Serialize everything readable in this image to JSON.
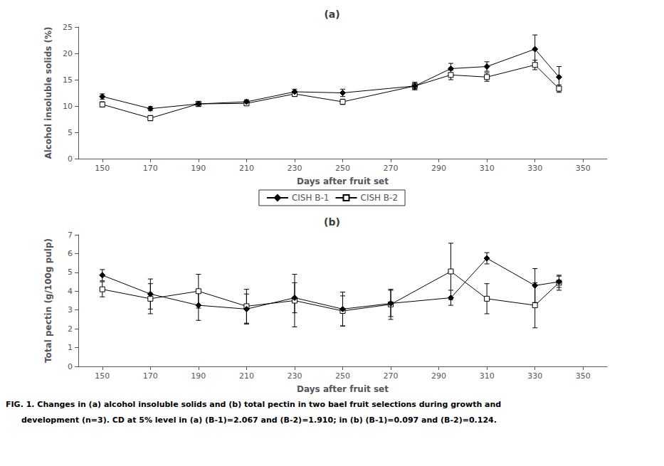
{
  "chart_data": [
    {
      "type": "line",
      "title": "(a)",
      "xlabel": "Days after fruit set",
      "ylabel": "Alcohol insoluble solids (%)",
      "xlim": [
        140,
        360
      ],
      "xticks": [
        150,
        170,
        190,
        210,
        230,
        250,
        270,
        290,
        310,
        330,
        350
      ],
      "ylim": [
        0,
        25
      ],
      "yticks": [
        0,
        5,
        10,
        15,
        20,
        25
      ],
      "grid": false,
      "legend": "bottom",
      "series": [
        {
          "name": "CISH B-1",
          "color": "#000000",
          "marker": "diamond",
          "line_style": "solid",
          "x": [
            150,
            170,
            190,
            210,
            230,
            250,
            280,
            295,
            310,
            330,
            340
          ],
          "values": [
            11.8,
            9.5,
            10.4,
            10.8,
            12.7,
            12.5,
            13.8,
            17.1,
            17.5,
            20.8,
            15.5
          ],
          "errors": [
            0.5,
            0.4,
            0.4,
            0.4,
            0.5,
            0.7,
            0.7,
            1.0,
            0.9,
            2.7,
            2.0
          ]
        },
        {
          "name": "CISH B-2",
          "color": "#000000",
          "marker": "open square",
          "line_style": "solid",
          "x": [
            150,
            170,
            190,
            210,
            230,
            250,
            280,
            295,
            310,
            330,
            340
          ],
          "values": [
            10.3,
            7.7,
            10.4,
            10.5,
            12.3,
            10.8,
            13.8,
            15.9,
            15.5,
            17.8,
            13.3
          ],
          "errors": [
            0.5,
            0.5,
            0.5,
            0.4,
            0.5,
            0.5,
            0.7,
            0.9,
            0.8,
            0.9,
            0.7
          ]
        }
      ]
    },
    {
      "type": "line",
      "title": "(b)",
      "xlabel": "Days after fruit set",
      "ylabel": "Total pectin (g/100g pulp)",
      "xlim": [
        140,
        360
      ],
      "xticks": [
        150,
        170,
        190,
        210,
        230,
        250,
        270,
        290,
        310,
        330,
        350
      ],
      "ylim": [
        0,
        7
      ],
      "yticks": [
        0,
        1,
        2,
        3,
        4,
        5,
        6,
        7
      ],
      "grid": false,
      "series": [
        {
          "name": "CISH B-1",
          "color": "#000000",
          "marker": "diamond",
          "line_style": "solid",
          "x": [
            150,
            170,
            190,
            210,
            230,
            250,
            270,
            295,
            310,
            330,
            340
          ],
          "values": [
            4.85,
            3.85,
            3.25,
            3.05,
            3.65,
            3.05,
            3.35,
            3.65,
            5.75,
            4.3,
            4.5
          ],
          "errors": [
            0.3,
            0.8,
            0.8,
            0.8,
            0.8,
            0.9,
            0.7,
            0.4,
            0.3,
            0.9,
            0.3
          ]
        },
        {
          "name": "CISH B-2",
          "color": "#000000",
          "marker": "open square",
          "line_style": "solid",
          "x": [
            150,
            170,
            190,
            210,
            230,
            250,
            270,
            295,
            310,
            330,
            340
          ],
          "values": [
            4.1,
            3.6,
            4.0,
            3.2,
            3.5,
            2.95,
            3.3,
            5.05,
            3.6,
            3.25,
            4.45
          ],
          "errors": [
            0.4,
            0.8,
            0.9,
            0.9,
            1.4,
            0.8,
            0.8,
            1.5,
            0.8,
            1.2,
            0.4
          ]
        }
      ],
      "annotations": [
        "FIG. 1. Changes in (a) alcohol insoluble solids and (b) total pectin in two bael fruit selections during growth and",
        "development (n=3). CD at 5% level in (a) (B-1)=2.067 and (B-2)=1.910; in (b) (B-1)=0.097 and (B-2)=0.124."
      ]
    }
  ]
}
